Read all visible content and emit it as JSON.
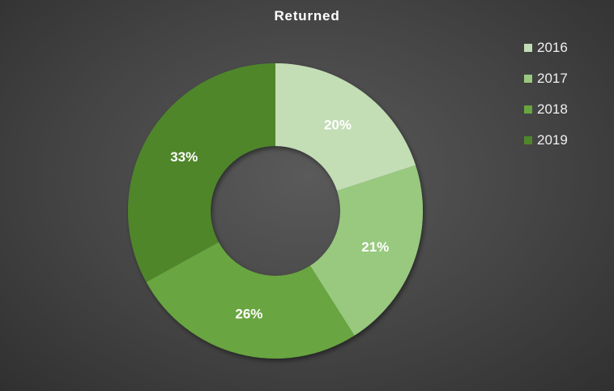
{
  "chart_data": {
    "type": "donut",
    "title": "Returned",
    "categories": [
      "2016",
      "2017",
      "2018",
      "2019"
    ],
    "values": [
      20,
      21,
      26,
      33
    ],
    "labels": [
      "20%",
      "21%",
      "26%",
      "33%"
    ],
    "colors": [
      "#c3ddb5",
      "#98c97f",
      "#69a53f",
      "#4f862b"
    ],
    "legend_position": "top-right"
  }
}
